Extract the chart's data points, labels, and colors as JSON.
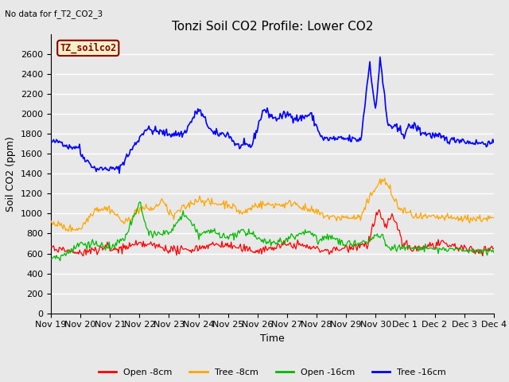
{
  "title": "Tonzi Soil CO2 Profile: Lower CO2",
  "subtitle": "No data for f_T2_CO2_3",
  "xlabel": "Time",
  "ylabel": "Soil CO2 (ppm)",
  "ylim": [
    0,
    2800
  ],
  "yticks": [
    0,
    200,
    400,
    600,
    800,
    1000,
    1200,
    1400,
    1600,
    1800,
    2000,
    2200,
    2400,
    2600
  ],
  "x_labels": [
    "Nov 19",
    "Nov 20",
    "Nov 21",
    "Nov 22",
    "Nov 23",
    "Nov 24",
    "Nov 25",
    "Nov 26",
    "Nov 27",
    "Nov 28",
    "Nov 29",
    "Nov 30",
    "Dec 1",
    "Dec 2",
    "Dec 3",
    "Dec 4"
  ],
  "legend_label": "TZ_soilco2",
  "series_labels": [
    "Open -8cm",
    "Tree -8cm",
    "Open -16cm",
    "Tree -16cm"
  ],
  "series_colors": [
    "#ff0000",
    "#ffa500",
    "#00bb00",
    "#0000ff"
  ],
  "background_color": "#e8e8e8",
  "grid_color": "#ffffff",
  "title_fontsize": 11,
  "axis_label_fontsize": 9,
  "tick_fontsize": 8,
  "legend_fontsize": 8
}
